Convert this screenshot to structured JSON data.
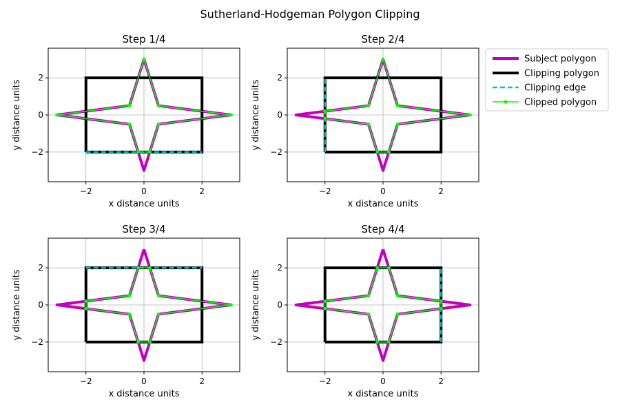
{
  "figure": {
    "title": "Sutherland-Hodgeman Polygon Clipping"
  },
  "colors": {
    "subject": "#bf00bf",
    "clipping": "#000000",
    "edge": "#00bfbf",
    "clipped": "#00ff00",
    "grid": "#b0b0b0"
  },
  "legend": {
    "placement": "right",
    "entries": [
      {
        "label": "Subject polygon",
        "key": "subject"
      },
      {
        "label": "Clipping polygon",
        "key": "clipping"
      },
      {
        "label": "Clipping edge",
        "key": "edge"
      },
      {
        "label": "Clipped polygon",
        "key": "clipped"
      }
    ]
  },
  "chart_data": {
    "type": "line",
    "xlabel": "x distance units",
    "ylabel": "y distance units",
    "xlim": [
      -3.3,
      3.3
    ],
    "ylim": [
      -3.6,
      3.6
    ],
    "xticks": [
      -2,
      0,
      2
    ],
    "yticks": [
      -2,
      0,
      2
    ],
    "xtick_labels": [
      "−2",
      "0",
      "2"
    ],
    "ytick_labels": [
      "−2",
      "0",
      "2"
    ],
    "grid": true,
    "subject_polygon": [
      [
        0,
        3
      ],
      [
        0.5,
        0.5
      ],
      [
        3,
        0
      ],
      [
        0.5,
        -0.5
      ],
      [
        0,
        -3
      ],
      [
        -0.5,
        -0.5
      ],
      [
        -3,
        0
      ],
      [
        -0.5,
        0.5
      ],
      [
        0,
        3
      ]
    ],
    "clipping_polygon": [
      [
        -2,
        -2
      ],
      [
        2,
        -2
      ],
      [
        2,
        2
      ],
      [
        -2,
        2
      ],
      [
        -2,
        -2
      ]
    ],
    "steps": [
      {
        "title": "Step 1/4",
        "clipping_edge": [
          [
            -2,
            -2
          ],
          [
            2,
            -2
          ]
        ],
        "clipped_polygon": [
          [
            0,
            3
          ],
          [
            0.5,
            0.5
          ],
          [
            3,
            0
          ],
          [
            0.5,
            -0.5
          ],
          [
            0.2,
            -2
          ],
          [
            -0.2,
            -2
          ],
          [
            -0.5,
            -0.5
          ],
          [
            -3,
            0
          ],
          [
            -0.5,
            0.5
          ],
          [
            0,
            3
          ]
        ]
      },
      {
        "title": "Step 2/4",
        "clipping_edge": [
          [
            -2,
            -2
          ],
          [
            -2,
            2
          ]
        ],
        "clipped_polygon": [
          [
            0,
            3
          ],
          [
            0.5,
            0.5
          ],
          [
            3,
            0
          ],
          [
            0.5,
            -0.5
          ],
          [
            0.2,
            -2
          ],
          [
            -0.2,
            -2
          ],
          [
            -0.5,
            -0.5
          ],
          [
            -2,
            -0.2
          ],
          [
            -2,
            0.2
          ],
          [
            -0.5,
            0.5
          ],
          [
            0,
            3
          ]
        ]
      },
      {
        "title": "Step 3/4",
        "clipping_edge": [
          [
            -2,
            2
          ],
          [
            2,
            2
          ]
        ],
        "clipped_polygon": [
          [
            0.2,
            2
          ],
          [
            0.5,
            0.5
          ],
          [
            3,
            0
          ],
          [
            0.5,
            -0.5
          ],
          [
            0.2,
            -2
          ],
          [
            -0.2,
            -2
          ],
          [
            -0.5,
            -0.5
          ],
          [
            -2,
            -0.2
          ],
          [
            -2,
            0.2
          ],
          [
            -0.5,
            0.5
          ],
          [
            -0.2,
            2
          ],
          [
            0.2,
            2
          ]
        ]
      },
      {
        "title": "Step 4/4",
        "clipping_edge": [
          [
            2,
            -2
          ],
          [
            2,
            2
          ]
        ],
        "clipped_polygon": [
          [
            0.2,
            2
          ],
          [
            0.5,
            0.5
          ],
          [
            2,
            0.2
          ],
          [
            2,
            -0.2
          ],
          [
            0.5,
            -0.5
          ],
          [
            0.2,
            -2
          ],
          [
            -0.2,
            -2
          ],
          [
            -0.5,
            -0.5
          ],
          [
            -2,
            -0.2
          ],
          [
            -2,
            0.2
          ],
          [
            -0.5,
            0.5
          ],
          [
            -0.2,
            2
          ],
          [
            0.2,
            2
          ]
        ]
      }
    ]
  }
}
